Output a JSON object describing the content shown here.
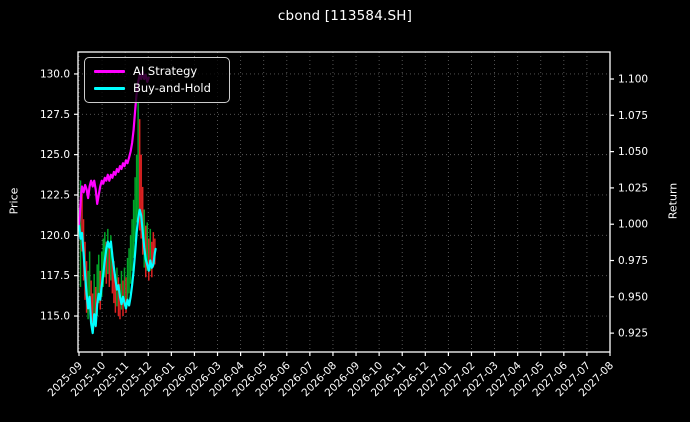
{
  "chart_data": {
    "type": "line+ohlc",
    "title": "cbond [113584.SH]",
    "background": "#000000",
    "text_color": "#ffffff",
    "grid": {
      "on": true,
      "style": "dotted",
      "color": "#5d5d5d"
    },
    "legend": {
      "position": "upper left"
    },
    "x_axis": {
      "origin_date": "2025-09-01",
      "tick_labels": [
        "2025-09",
        "2025-10",
        "2025-11",
        "2025-12",
        "2026-01",
        "2026-02",
        "2026-03",
        "2026-04",
        "2026-05",
        "2026-06",
        "2026-07",
        "2026-08",
        "2026-09",
        "2026-10",
        "2026-11",
        "2026-12",
        "2027-01",
        "2027-02",
        "2027-03",
        "2027-04",
        "2027-05",
        "2027-06",
        "2027-07",
        "2027-08"
      ],
      "note": "data spans 2025-09 to mid 2025-12; axis extends to 2027-08"
    },
    "left_axis": {
      "label": "Price",
      "min": 112.77,
      "max": 131.36,
      "tick_values": [
        115.0,
        117.5,
        120.0,
        122.5,
        125.0,
        127.5,
        130.0
      ],
      "tick_labels": [
        "115.0",
        "117.5",
        "120.0",
        "122.5",
        "125.0",
        "127.5",
        "130.0"
      ]
    },
    "right_axis": {
      "label": "Return",
      "min": 0.912,
      "max": 1.1186,
      "tick_values": [
        0.925,
        0.95,
        0.975,
        1.0,
        1.025,
        1.05,
        1.075,
        1.1
      ],
      "tick_labels": [
        "0.925",
        "0.950",
        "0.975",
        "1.000",
        "1.025",
        "1.050",
        "1.075",
        "1.100"
      ]
    },
    "series": [
      {
        "name": "AI Strategy",
        "axis": "right",
        "color": "#ff00ff",
        "points": [
          [
            0,
            1.0
          ],
          [
            1,
            1.006
          ],
          [
            2,
            1.014
          ],
          [
            3,
            1.022
          ],
          [
            4,
            1.026
          ],
          [
            6,
            1.022
          ],
          [
            8,
            1.027
          ],
          [
            10,
            1.024
          ],
          [
            12,
            1.018
          ],
          [
            14,
            1.026
          ],
          [
            16,
            1.03
          ],
          [
            18,
            1.026
          ],
          [
            20,
            1.03
          ],
          [
            22,
            1.024
          ],
          [
            24,
            1.014
          ],
          [
            26,
            1.02
          ],
          [
            28,
            1.026
          ],
          [
            30,
            1.03
          ],
          [
            32,
            1.028
          ],
          [
            34,
            1.032
          ],
          [
            36,
            1.03
          ],
          [
            38,
            1.034
          ],
          [
            40,
            1.03
          ],
          [
            42,
            1.034
          ],
          [
            44,
            1.032
          ],
          [
            46,
            1.036
          ],
          [
            48,
            1.034
          ],
          [
            50,
            1.038
          ],
          [
            52,
            1.036
          ],
          [
            54,
            1.04
          ],
          [
            56,
            1.038
          ],
          [
            58,
            1.042
          ],
          [
            60,
            1.04
          ],
          [
            62,
            1.044
          ],
          [
            64,
            1.042
          ],
          [
            66,
            1.046
          ],
          [
            68,
            1.05
          ],
          [
            70,
            1.056
          ],
          [
            72,
            1.065
          ],
          [
            74,
            1.078
          ],
          [
            76,
            1.09
          ],
          [
            78,
            1.098
          ],
          [
            80,
            1.103
          ],
          [
            82,
            1.1
          ],
          [
            84,
            1.105
          ],
          [
            86,
            1.1
          ],
          [
            88,
            1.103
          ],
          [
            90,
            1.098
          ],
          [
            92,
            1.101
          ]
        ]
      },
      {
        "name": "Buy-and-Hold",
        "axis": "right",
        "color": "#00ffff",
        "points": [
          [
            0,
            1.0
          ],
          [
            2,
            0.99
          ],
          [
            4,
            0.994
          ],
          [
            6,
            0.98
          ],
          [
            8,
            0.965
          ],
          [
            10,
            0.952
          ],
          [
            12,
            0.942
          ],
          [
            14,
            0.95
          ],
          [
            16,
            0.932
          ],
          [
            18,
            0.925
          ],
          [
            20,
            0.938
          ],
          [
            22,
            0.93
          ],
          [
            24,
            0.945
          ],
          [
            26,
            0.952
          ],
          [
            28,
            0.948
          ],
          [
            30,
            0.958
          ],
          [
            32,
            0.966
          ],
          [
            34,
            0.975
          ],
          [
            36,
            0.983
          ],
          [
            38,
            0.988
          ],
          [
            40,
            0.984
          ],
          [
            42,
            0.988
          ],
          [
            44,
            0.978
          ],
          [
            46,
            0.97
          ],
          [
            48,
            0.962
          ],
          [
            50,
            0.955
          ],
          [
            52,
            0.958
          ],
          [
            54,
            0.95
          ],
          [
            56,
            0.945
          ],
          [
            58,
            0.95
          ],
          [
            60,
            0.946
          ],
          [
            62,
            0.942
          ],
          [
            64,
            0.948
          ],
          [
            66,
            0.944
          ],
          [
            68,
            0.95
          ],
          [
            70,
            0.958
          ],
          [
            72,
            0.968
          ],
          [
            74,
            0.98
          ],
          [
            76,
            0.994
          ],
          [
            78,
            1.004
          ],
          [
            80,
            1.01
          ],
          [
            82,
            1.006
          ],
          [
            84,
            0.995
          ],
          [
            86,
            0.984
          ],
          [
            88,
            0.976
          ],
          [
            90,
            0.972
          ],
          [
            92,
            0.968
          ],
          [
            94,
            0.975
          ],
          [
            96,
            0.97
          ],
          [
            98,
            0.972
          ],
          [
            100,
            0.98
          ],
          [
            101,
            0.983
          ]
        ]
      }
    ],
    "ohlc_bars": {
      "axis": "left",
      "up_color": "#00a428",
      "down_color": "#dd2222",
      "bars": [
        [
          0,
          120.0,
          121.6,
          "u"
        ],
        [
          2,
          116.8,
          123.4,
          "u"
        ],
        [
          4,
          119.0,
          122.6,
          "d"
        ],
        [
          6,
          117.2,
          121.0,
          "d"
        ],
        [
          8,
          116.0,
          119.6,
          "d"
        ],
        [
          10,
          115.2,
          118.4,
          "d"
        ],
        [
          12,
          114.8,
          117.8,
          "u"
        ],
        [
          14,
          115.6,
          119.0,
          "u"
        ],
        [
          16,
          114.4,
          117.2,
          "d"
        ],
        [
          18,
          114.1,
          116.4,
          "d"
        ],
        [
          20,
          114.6,
          117.6,
          "u"
        ],
        [
          22,
          114.3,
          116.8,
          "d"
        ],
        [
          24,
          115.0,
          118.2,
          "u"
        ],
        [
          26,
          115.8,
          118.8,
          "u"
        ],
        [
          28,
          115.4,
          117.8,
          "d"
        ],
        [
          30,
          116.2,
          119.0,
          "u"
        ],
        [
          32,
          116.8,
          119.8,
          "u"
        ],
        [
          34,
          117.4,
          120.2,
          "u"
        ],
        [
          36,
          117.0,
          119.6,
          "d"
        ],
        [
          38,
          117.6,
          120.4,
          "u"
        ],
        [
          40,
          116.8,
          119.4,
          "d"
        ],
        [
          42,
          117.2,
          120.0,
          "u"
        ],
        [
          44,
          116.4,
          119.0,
          "d"
        ],
        [
          46,
          115.8,
          118.4,
          "d"
        ],
        [
          48,
          115.2,
          117.6,
          "d"
        ],
        [
          50,
          115.6,
          118.0,
          "u"
        ],
        [
          52,
          115.0,
          117.4,
          "d"
        ],
        [
          54,
          114.8,
          117.0,
          "d"
        ],
        [
          56,
          115.4,
          117.8,
          "u"
        ],
        [
          58,
          115.0,
          117.2,
          "d"
        ],
        [
          60,
          115.6,
          118.0,
          "u"
        ],
        [
          62,
          115.2,
          117.4,
          "d"
        ],
        [
          64,
          115.8,
          118.6,
          "u"
        ],
        [
          66,
          116.4,
          119.2,
          "u"
        ],
        [
          68,
          117.0,
          120.0,
          "u"
        ],
        [
          70,
          117.8,
          121.0,
          "u"
        ],
        [
          72,
          118.6,
          122.2,
          "u"
        ],
        [
          74,
          119.6,
          123.6,
          "u"
        ],
        [
          76,
          120.8,
          125.0,
          "u"
        ],
        [
          78,
          121.2,
          128.2,
          "u"
        ],
        [
          80,
          120.3,
          127.2,
          "d"
        ],
        [
          82,
          119.8,
          125.0,
          "d"
        ],
        [
          84,
          118.8,
          123.0,
          "d"
        ],
        [
          86,
          118.0,
          121.6,
          "u"
        ],
        [
          88,
          117.4,
          120.6,
          "d"
        ],
        [
          90,
          117.8,
          120.8,
          "u"
        ],
        [
          92,
          117.2,
          119.8,
          "d"
        ],
        [
          94,
          117.8,
          120.4,
          "u"
        ],
        [
          96,
          117.4,
          119.6,
          "d"
        ],
        [
          98,
          118.0,
          120.2,
          "d"
        ],
        [
          100,
          118.2,
          119.8,
          "d"
        ]
      ]
    }
  }
}
